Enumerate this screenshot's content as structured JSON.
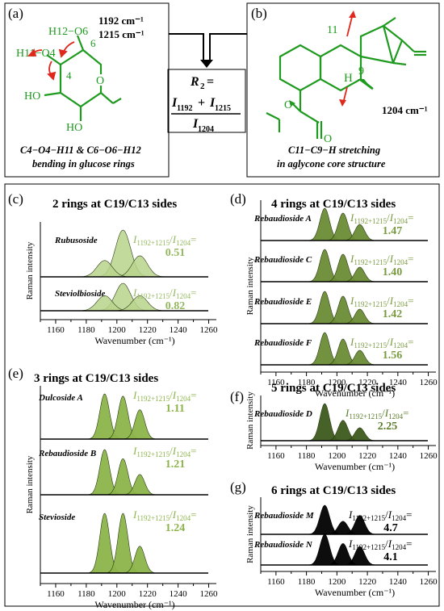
{
  "panel_a": {
    "label": "(a)",
    "freq1": "1192 cm⁻¹",
    "freq2": "1215 cm⁻¹",
    "atoms": {
      "h12o6": "H12−O6",
      "h11o4": "H11−O4",
      "n6": "6",
      "n4": "4",
      "o": "O",
      "ho1": "HO",
      "ho2": "HO"
    },
    "caption1": "C4−O4−H11 & C6−O6−H12",
    "caption2": "bending in glucose rings"
  },
  "panel_b": {
    "label": "(b)",
    "freq": "1204 cm⁻¹",
    "atoms": {
      "n11": "11",
      "n9": "9",
      "h": "H",
      "o": "O"
    },
    "caption1": "C11−C9−H stretching",
    "caption2": "in aglycone core structure"
  },
  "formula": {
    "r": "R",
    "r_sub": "2",
    "eq": " =",
    "i": "I",
    "n1": "1192",
    "plus": "+ ",
    "n2": "1215",
    "den": "1204"
  },
  "axis": {
    "ylabel": "Raman intensity",
    "xlabel": "Wavenumber (cm⁻¹)",
    "ticks": [
      "1160",
      "1180",
      "1200",
      "1220",
      "1240",
      "1260"
    ]
  },
  "ratio_label": {
    "i": "I",
    "sub": "1192+1215",
    "slash": "/",
    "den": "1204",
    "eq": "="
  },
  "colors": {
    "c": "#b8d48c",
    "d": "#6b8c35",
    "e": "#8cb44a",
    "f": "#3c5a1c",
    "g": "#000000",
    "ratio_c": "#94b85e",
    "ratio_e": "#8cb44a",
    "ratio_d": "#7a9a40",
    "ratio_f": "#5a7a2a",
    "molecule": "#1e9a1e",
    "arrow": "#e0281c"
  },
  "chart_data": [
    {
      "type": "line",
      "panel": "(c)",
      "title": "2 rings at C19/C13 sides",
      "xlabel": "Wavenumber (cm⁻¹)",
      "ylabel": "Raman intensity",
      "xlim": [
        1150,
        1265
      ],
      "series": [
        {
          "name": "Rubusoside",
          "ratio": "0.51",
          "peaks": [
            {
              "x": 1192,
              "y": 0.35
            },
            {
              "x": 1204,
              "y": 1.0
            },
            {
              "x": 1215,
              "y": 0.45
            }
          ]
        },
        {
          "name": "Steviolbioside",
          "ratio": "0.82",
          "peaks": [
            {
              "x": 1192,
              "y": 0.55
            },
            {
              "x": 1204,
              "y": 1.0
            },
            {
              "x": 1215,
              "y": 0.55
            }
          ]
        }
      ]
    },
    {
      "type": "line",
      "panel": "(d)",
      "title": "4 rings at C19/C13 sides",
      "xlabel": "Wavenumber (cm⁻¹)",
      "ylabel": "Raman intensity",
      "xlim": [
        1150,
        1265
      ],
      "series": [
        {
          "name": "Rebaudioside A",
          "ratio": "1.47",
          "peaks": [
            {
              "x": 1192,
              "y": 1.0
            },
            {
              "x": 1204,
              "y": 0.85
            },
            {
              "x": 1215,
              "y": 0.5
            }
          ]
        },
        {
          "name": "Rebaudioside C",
          "ratio": "1.40",
          "peaks": [
            {
              "x": 1192,
              "y": 1.0
            },
            {
              "x": 1204,
              "y": 0.85
            },
            {
              "x": 1215,
              "y": 0.45
            }
          ]
        },
        {
          "name": "Rebaudioside E",
          "ratio": "1.42",
          "peaks": [
            {
              "x": 1192,
              "y": 1.0
            },
            {
              "x": 1204,
              "y": 0.85
            },
            {
              "x": 1215,
              "y": 0.45
            }
          ]
        },
        {
          "name": "Rebaudioside F",
          "ratio": "1.56",
          "peaks": [
            {
              "x": 1192,
              "y": 1.0
            },
            {
              "x": 1204,
              "y": 0.8
            },
            {
              "x": 1215,
              "y": 0.45
            }
          ]
        }
      ]
    },
    {
      "type": "line",
      "panel": "(e)",
      "title": "3 rings at C19/C13 sides",
      "xlabel": "Wavenumber (cm⁻¹)",
      "ylabel": "Raman intensity",
      "xlim": [
        1150,
        1265
      ],
      "series": [
        {
          "name": "Dulcoside A",
          "ratio": "1.11",
          "peaks": [
            {
              "x": 1192,
              "y": 1.0
            },
            {
              "x": 1204,
              "y": 0.95
            },
            {
              "x": 1215,
              "y": 0.65
            }
          ]
        },
        {
          "name": "Rebaudioside B",
          "ratio": "1.21",
          "peaks": [
            {
              "x": 1192,
              "y": 1.0
            },
            {
              "x": 1204,
              "y": 0.8
            },
            {
              "x": 1215,
              "y": 0.45
            }
          ]
        },
        {
          "name": "Stevioside",
          "ratio": "1.24",
          "peaks": [
            {
              "x": 1192,
              "y": 1.0
            },
            {
              "x": 1204,
              "y": 1.0
            },
            {
              "x": 1215,
              "y": 0.45
            }
          ]
        }
      ]
    },
    {
      "type": "line",
      "panel": "(f)",
      "title": "5 rings at C19/C13 sides",
      "xlabel": "Wavenumber (cm⁻¹)",
      "ylabel": "Raman intensity",
      "xlim": [
        1150,
        1265
      ],
      "series": [
        {
          "name": "Rebaudioside D",
          "ratio": "2.25",
          "peaks": [
            {
              "x": 1192,
              "y": 1.0
            },
            {
              "x": 1204,
              "y": 0.55
            },
            {
              "x": 1215,
              "y": 0.35
            }
          ]
        }
      ]
    },
    {
      "type": "line",
      "panel": "(g)",
      "title": "6 rings at C19/C13 sides",
      "xlabel": "Wavenumber (cm⁻¹)",
      "ylabel": "Raman intensity",
      "xlim": [
        1150,
        1265
      ],
      "series": [
        {
          "name": "Rebaudioside M",
          "ratio": "4.7",
          "peaks": [
            {
              "x": 1192,
              "y": 1.0
            },
            {
              "x": 1204,
              "y": 0.45
            },
            {
              "x": 1215,
              "y": 0.65
            }
          ]
        },
        {
          "name": "Rebaudioside N",
          "ratio": "4.1",
          "peaks": [
            {
              "x": 1192,
              "y": 1.0
            },
            {
              "x": 1204,
              "y": 0.7
            },
            {
              "x": 1215,
              "y": 0.6
            }
          ]
        }
      ]
    }
  ]
}
